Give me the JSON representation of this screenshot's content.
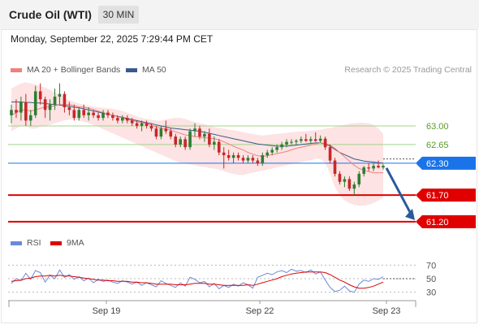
{
  "header": {
    "instrument": "Crude Oil (WTI)",
    "timeframe": "30 MIN",
    "datetime": "Monday, September 22, 2025 7:29:44 PM CET"
  },
  "legend": {
    "ma20_label": "MA 20 + Bollinger Bands",
    "ma50_label": "MA 50",
    "rsi_label": "RSI",
    "rsi_ma_label": "9MA",
    "credit": "Research © 2025 Trading Central"
  },
  "colors": {
    "ma20": "#f08080",
    "ma50": "#3a5a8c",
    "bollinger_fill": "#fde3e3",
    "bull_candle": "#2e7d32",
    "bear_candle": "#c62828",
    "resistance_line": "#a5d38c",
    "pivot_line": "#1a73e8",
    "support_line": "#e00000",
    "arrow": "#2a5a9a",
    "rsi_line": "#6a8ad8",
    "rsi_ma_line": "#e00000"
  },
  "chart_data": [
    {
      "type": "candlestick",
      "title": "Crude Oil (WTI)",
      "timeframe": "30 MIN",
      "ylim": [
        61.0,
        63.9
      ],
      "x_ticks": [
        "Sep 19",
        "Sep 22",
        "Sep 23"
      ],
      "candles_ohlc": [
        [
          63.2,
          63.4,
          63.05,
          63.3
        ],
        [
          63.3,
          63.5,
          63.15,
          63.25
        ],
        [
          63.25,
          63.55,
          63.1,
          63.45
        ],
        [
          63.45,
          63.6,
          63.0,
          63.1
        ],
        [
          63.1,
          63.3,
          63.0,
          63.2
        ],
        [
          63.2,
          63.75,
          63.15,
          63.65
        ],
        [
          63.65,
          63.8,
          63.4,
          63.5
        ],
        [
          63.5,
          63.55,
          63.15,
          63.3
        ],
        [
          63.3,
          63.5,
          63.1,
          63.4
        ],
        [
          63.4,
          63.7,
          63.3,
          63.55
        ],
        [
          63.55,
          63.8,
          63.4,
          63.6
        ],
        [
          63.6,
          63.65,
          63.25,
          63.35
        ],
        [
          63.35,
          63.45,
          63.2,
          63.3
        ],
        [
          63.3,
          63.4,
          63.1,
          63.15
        ],
        [
          63.15,
          63.35,
          63.1,
          63.3
        ],
        [
          63.3,
          63.4,
          63.15,
          63.2
        ],
        [
          63.2,
          63.35,
          63.1,
          63.25
        ],
        [
          63.25,
          63.3,
          63.15,
          63.2
        ],
        [
          63.2,
          63.25,
          63.1,
          63.15
        ],
        [
          63.15,
          63.3,
          63.1,
          63.25
        ],
        [
          63.25,
          63.3,
          63.15,
          63.2
        ],
        [
          63.2,
          63.25,
          63.1,
          63.15
        ],
        [
          63.15,
          63.2,
          63.05,
          63.1
        ],
        [
          63.1,
          63.2,
          63.05,
          63.15
        ],
        [
          63.15,
          63.2,
          63.05,
          63.1
        ],
        [
          63.1,
          63.15,
          63.0,
          63.05
        ],
        [
          63.05,
          63.1,
          62.95,
          63.0
        ],
        [
          63.0,
          63.1,
          62.9,
          63.05
        ],
        [
          63.05,
          63.1,
          62.95,
          63.0
        ],
        [
          63.0,
          63.05,
          62.9,
          62.95
        ],
        [
          62.95,
          63.0,
          62.75,
          62.8
        ],
        [
          62.8,
          63.0,
          62.75,
          62.95
        ],
        [
          62.95,
          63.1,
          62.85,
          62.9
        ],
        [
          62.9,
          62.95,
          62.75,
          62.8
        ],
        [
          62.8,
          62.85,
          62.6,
          62.65
        ],
        [
          62.65,
          62.8,
          62.6,
          62.75
        ],
        [
          62.75,
          62.8,
          62.55,
          62.6
        ],
        [
          62.6,
          62.95,
          62.55,
          62.9
        ],
        [
          62.9,
          63.05,
          62.8,
          62.95
        ],
        [
          62.95,
          63.0,
          62.75,
          62.8
        ],
        [
          62.8,
          62.9,
          62.7,
          62.85
        ],
        [
          62.85,
          62.95,
          62.6,
          62.65
        ],
        [
          62.65,
          62.8,
          62.55,
          62.7
        ],
        [
          62.7,
          62.75,
          62.45,
          62.5
        ],
        [
          62.5,
          62.6,
          62.2,
          62.45
        ],
        [
          62.45,
          62.55,
          62.35,
          62.4
        ],
        [
          62.4,
          62.5,
          62.3,
          62.45
        ],
        [
          62.45,
          62.5,
          62.35,
          62.4
        ],
        [
          62.4,
          62.45,
          62.3,
          62.35
        ],
        [
          62.35,
          62.45,
          62.3,
          62.4
        ],
        [
          62.4,
          62.45,
          62.3,
          62.35
        ],
        [
          62.35,
          62.4,
          62.25,
          62.3
        ],
        [
          62.3,
          62.5,
          62.25,
          62.45
        ],
        [
          62.45,
          62.55,
          62.4,
          62.5
        ],
        [
          62.5,
          62.6,
          62.45,
          62.55
        ],
        [
          62.55,
          62.65,
          62.5,
          62.6
        ],
        [
          62.6,
          62.7,
          62.55,
          62.65
        ],
        [
          62.65,
          62.75,
          62.6,
          62.7
        ],
        [
          62.7,
          62.75,
          62.65,
          62.7
        ],
        [
          62.7,
          62.75,
          62.65,
          62.72
        ],
        [
          62.72,
          62.8,
          62.68,
          62.75
        ],
        [
          62.75,
          62.85,
          62.7,
          62.72
        ],
        [
          62.72,
          62.8,
          62.68,
          62.75
        ],
        [
          62.75,
          62.88,
          62.7,
          62.72
        ],
        [
          62.72,
          62.82,
          62.68,
          62.76
        ],
        [
          62.76,
          62.8,
          62.55,
          62.6
        ],
        [
          62.6,
          62.65,
          62.3,
          62.35
        ],
        [
          62.35,
          62.4,
          62.05,
          62.1
        ],
        [
          62.1,
          62.15,
          61.9,
          61.95
        ],
        [
          61.95,
          62.05,
          61.85,
          62.0
        ],
        [
          62.0,
          62.05,
          61.78,
          61.82
        ],
        [
          61.82,
          61.95,
          61.7,
          61.9
        ],
        [
          61.9,
          62.15,
          61.85,
          62.1
        ],
        [
          62.1,
          62.25,
          62.05,
          62.22
        ],
        [
          62.22,
          62.3,
          62.15,
          62.2
        ],
        [
          62.2,
          62.3,
          62.15,
          62.25
        ],
        [
          62.25,
          62.35,
          62.2,
          62.22
        ],
        [
          62.22,
          62.28,
          62.18,
          62.25
        ]
      ],
      "ma20": [
        63.2,
        63.25,
        63.3,
        63.3,
        63.28,
        63.3,
        63.33,
        63.35,
        63.36,
        63.38,
        63.4,
        63.4,
        63.4,
        63.38,
        63.36,
        63.35,
        63.33,
        63.31,
        63.28,
        63.25,
        63.22,
        63.2,
        63.17,
        63.15,
        63.12,
        63.1,
        63.08,
        63.06,
        63.04,
        63.02,
        62.98,
        62.96,
        62.94,
        62.92,
        62.89,
        62.86,
        62.83,
        62.82,
        62.8,
        62.79,
        62.78,
        62.77,
        62.76,
        62.74,
        62.7,
        62.66,
        62.62,
        62.58,
        62.55,
        62.5,
        62.47,
        62.44,
        62.43,
        62.44,
        62.46,
        62.48,
        62.5,
        62.52,
        62.55,
        62.58,
        62.6,
        62.62,
        62.64,
        62.66,
        62.68,
        62.67,
        62.64,
        62.58,
        62.5,
        62.42,
        62.34,
        62.26,
        62.2,
        62.17,
        62.14,
        62.12,
        62.12,
        62.12
      ],
      "ma50": [
        63.45,
        63.45,
        63.45,
        63.44,
        63.44,
        63.43,
        63.43,
        63.42,
        63.41,
        63.4,
        63.39,
        63.38,
        63.37,
        63.35,
        63.34,
        63.32,
        63.3,
        63.28,
        63.26,
        63.24,
        63.22,
        63.2,
        63.18,
        63.16,
        63.14,
        63.12,
        63.1,
        63.08,
        63.06,
        63.04,
        63.02,
        63.0,
        62.98,
        62.96,
        62.95,
        62.94,
        62.93,
        62.92,
        62.91,
        62.9,
        62.88,
        62.86,
        62.84,
        62.82,
        62.8,
        62.78,
        62.76,
        62.74,
        62.72,
        62.7,
        62.68,
        62.66,
        62.65,
        62.64,
        62.63,
        62.62,
        62.62,
        62.62,
        62.63,
        62.64,
        62.65,
        62.66,
        62.67,
        62.68,
        62.68,
        62.66,
        62.62,
        62.56,
        62.5,
        62.46,
        62.42,
        62.38,
        62.36,
        62.34,
        62.33,
        62.32,
        62.31,
        62.3
      ],
      "bb_upper": [
        63.7,
        63.75,
        63.8,
        63.82,
        63.8,
        63.78,
        63.75,
        63.72,
        63.68,
        63.63,
        63.58,
        63.53,
        63.48,
        63.45,
        63.42,
        63.4,
        63.38,
        63.36,
        63.35,
        63.34,
        63.33,
        63.32,
        63.3,
        63.28,
        63.25,
        63.22,
        63.18,
        63.15,
        63.13,
        63.12,
        63.1,
        63.1,
        63.12,
        63.14,
        63.15,
        63.15,
        63.13,
        63.1,
        63.07,
        63.05,
        63.03,
        63.0,
        62.98,
        62.96,
        62.95,
        62.93,
        62.92,
        62.9,
        62.88,
        62.86,
        62.85,
        62.83,
        62.82,
        62.83,
        62.84,
        62.85,
        62.86,
        62.87,
        62.88,
        62.89,
        62.9,
        62.9,
        62.91,
        62.92,
        62.93,
        62.95,
        62.96,
        62.98,
        63.0,
        63.02,
        63.04,
        63.05,
        63.06,
        63.06,
        63.05,
        63.02,
        62.95,
        62.85
      ],
      "bb_lower": [
        62.9,
        62.95,
        63.0,
        63.0,
        62.95,
        62.95,
        62.98,
        63.0,
        63.02,
        63.05,
        63.08,
        63.1,
        63.12,
        63.12,
        63.1,
        63.08,
        63.05,
        63.02,
        62.98,
        62.94,
        62.9,
        62.86,
        62.82,
        62.78,
        62.74,
        62.7,
        62.66,
        62.62,
        62.58,
        62.54,
        62.5,
        62.46,
        62.42,
        62.38,
        62.34,
        62.31,
        62.29,
        62.28,
        62.26,
        62.24,
        62.23,
        62.21,
        62.2,
        62.18,
        62.15,
        62.12,
        62.1,
        62.08,
        62.08,
        62.1,
        62.12,
        62.14,
        62.16,
        62.18,
        62.2,
        62.22,
        62.24,
        62.26,
        62.28,
        62.3,
        62.32,
        62.34,
        62.36,
        62.38,
        62.38,
        62.3,
        62.1,
        61.85,
        61.7,
        61.6,
        61.55,
        61.52,
        61.5,
        61.5,
        61.52,
        61.55,
        61.6,
        61.65
      ],
      "levels": [
        {
          "label": "63.00",
          "value": 63.0,
          "kind": "resistance"
        },
        {
          "label": "62.65",
          "value": 62.65,
          "kind": "resistance"
        },
        {
          "label": "62.30",
          "value": 62.3,
          "kind": "pivot"
        },
        {
          "label": "61.70",
          "value": 61.7,
          "kind": "support"
        },
        {
          "label": "61.20",
          "value": 61.2,
          "kind": "support"
        }
      ],
      "arrow": {
        "from_value": 62.3,
        "to_value": 61.2,
        "direction": "down"
      },
      "grid": false
    },
    {
      "type": "line",
      "title": "RSI",
      "ylim": [
        20,
        80
      ],
      "y_ticks": [
        30,
        50,
        70
      ],
      "y_tick_labels": [
        "30",
        "50",
        "70"
      ],
      "series": [
        {
          "name": "RSI",
          "values": [
            43,
            50,
            47,
            58,
            49,
            62,
            59,
            45,
            55,
            50,
            63,
            52,
            56,
            49,
            53,
            47,
            51,
            44,
            49,
            46,
            48,
            45,
            43,
            47,
            45,
            42,
            45,
            40,
            44,
            41,
            38,
            47,
            43,
            40,
            37,
            44,
            39,
            52,
            49,
            44,
            46,
            38,
            43,
            35,
            40,
            37,
            42,
            39,
            44,
            41,
            36,
            52,
            55,
            58,
            56,
            60,
            62,
            59,
            64,
            61,
            62,
            59,
            63,
            57,
            60,
            48,
            37,
            31,
            33,
            39,
            32,
            30,
            42,
            48,
            46,
            50,
            49,
            53
          ]
        },
        {
          "name": "9MA",
          "values": [
            46,
            47,
            48,
            50,
            51,
            53,
            54,
            54,
            55,
            54,
            55,
            54,
            54,
            53,
            52,
            51,
            50,
            49,
            48,
            48,
            47,
            47,
            46,
            46,
            46,
            45,
            45,
            44,
            44,
            43,
            42,
            42,
            42,
            42,
            41,
            41,
            41,
            42,
            43,
            43,
            43,
            42,
            42,
            41,
            40,
            40,
            40,
            40,
            40,
            41,
            40,
            42,
            44,
            46,
            48,
            50,
            53,
            55,
            57,
            58,
            59,
            60,
            60,
            60,
            60,
            59,
            56,
            52,
            48,
            45,
            41,
            38,
            36,
            36,
            37,
            39,
            42,
            45
          ]
        }
      ]
    }
  ]
}
